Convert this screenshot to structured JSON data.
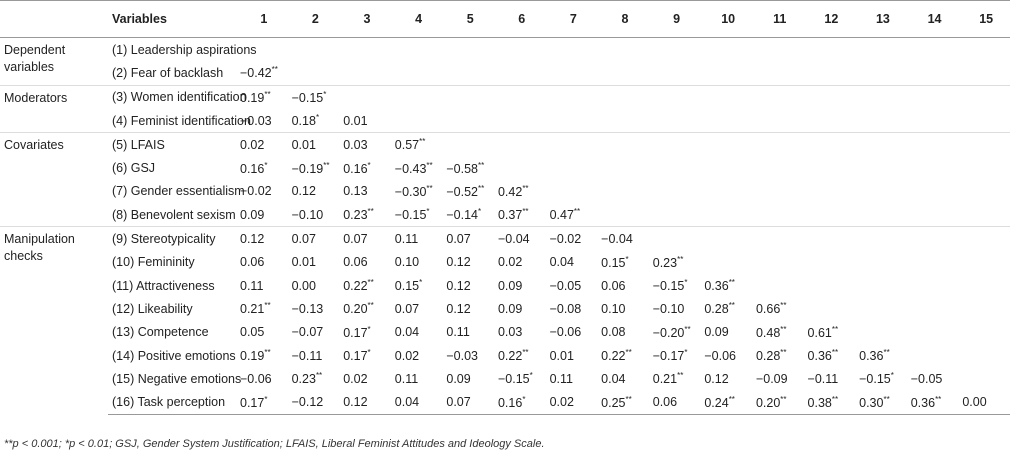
{
  "table": {
    "header": [
      "Variables",
      "1",
      "2",
      "3",
      "4",
      "5",
      "6",
      "7",
      "8",
      "9",
      "10",
      "11",
      "12",
      "13",
      "14",
      "15"
    ],
    "groups": [
      {
        "label": "Dependent variables",
        "rows": [
          {
            "label": "(1) Leadership aspirations",
            "cells": []
          },
          {
            "label": "(2) Fear of backlash",
            "cells": [
              {
                "value": "−0.42",
                "sup": "**"
              }
            ]
          }
        ]
      },
      {
        "label": "Moderators",
        "rows": [
          {
            "label": "(3) Women identification",
            "cells": [
              {
                "value": "0.19",
                "sup": "**"
              },
              {
                "value": "−0.15",
                "sup": "*"
              }
            ]
          },
          {
            "label": "(4) Feminist identification",
            "cells": [
              {
                "value": "−0.03"
              },
              {
                "value": "0.18",
                "sup": "*"
              },
              {
                "value": "0.01"
              }
            ]
          }
        ]
      },
      {
        "label": "Covariates",
        "rows": [
          {
            "label": "(5) LFAIS",
            "cells": [
              {
                "value": "0.02"
              },
              {
                "value": "0.01"
              },
              {
                "value": "0.03"
              },
              {
                "value": "0.57",
                "sup": "**"
              }
            ]
          },
          {
            "label": "(6) GSJ",
            "cells": [
              {
                "value": "0.16",
                "sup": "*"
              },
              {
                "value": "−0.19",
                "sup": "**"
              },
              {
                "value": "0.16",
                "sup": "*"
              },
              {
                "value": "−0.43",
                "sup": "**"
              },
              {
                "value": "−0.58",
                "sup": "**"
              }
            ]
          },
          {
            "label": "(7) Gender essentialism",
            "cells": [
              {
                "value": "−0.02"
              },
              {
                "value": "0.12"
              },
              {
                "value": "0.13"
              },
              {
                "value": "−0.30",
                "sup": "**"
              },
              {
                "value": "−0.52",
                "sup": "**"
              },
              {
                "value": "0.42",
                "sup": "**"
              }
            ]
          },
          {
            "label": "(8) Benevolent sexism",
            "cells": [
              {
                "value": "0.09"
              },
              {
                "value": "−0.10"
              },
              {
                "value": "0.23",
                "sup": "**"
              },
              {
                "value": "−0.15",
                "sup": "*"
              },
              {
                "value": "−0.14",
                "sup": "*"
              },
              {
                "value": "0.37",
                "sup": "**"
              },
              {
                "value": "0.47",
                "sup": "**"
              }
            ]
          }
        ]
      },
      {
        "label": "Manipulation checks",
        "rows": [
          {
            "label": "(9) Stereotypicality",
            "cells": [
              {
                "value": "0.12"
              },
              {
                "value": "0.07"
              },
              {
                "value": "0.07"
              },
              {
                "value": "0.11"
              },
              {
                "value": "0.07"
              },
              {
                "value": "−0.04"
              },
              {
                "value": "−0.02"
              },
              {
                "value": "−0.04"
              }
            ]
          },
          {
            "label": "(10) Femininity",
            "cells": [
              {
                "value": "0.06"
              },
              {
                "value": "0.01"
              },
              {
                "value": "0.06"
              },
              {
                "value": "0.10"
              },
              {
                "value": "0.12"
              },
              {
                "value": "0.02"
              },
              {
                "value": "0.04"
              },
              {
                "value": "0.15",
                "sup": "*"
              },
              {
                "value": "0.23",
                "sup": "**"
              }
            ]
          },
          {
            "label": "(11) Attractiveness",
            "cells": [
              {
                "value": "0.11"
              },
              {
                "value": "0.00"
              },
              {
                "value": "0.22",
                "sup": "**"
              },
              {
                "value": "0.15",
                "sup": "*"
              },
              {
                "value": "0.12"
              },
              {
                "value": "0.09"
              },
              {
                "value": "−0.05"
              },
              {
                "value": "0.06"
              },
              {
                "value": "−0.15",
                "sup": "*"
              },
              {
                "value": "0.36",
                "sup": "**"
              }
            ]
          },
          {
            "label": "(12) Likeability",
            "cells": [
              {
                "value": "0.21",
                "sup": "**"
              },
              {
                "value": "−0.13"
              },
              {
                "value": "0.20",
                "sup": "**"
              },
              {
                "value": "0.07"
              },
              {
                "value": "0.12"
              },
              {
                "value": "0.09"
              },
              {
                "value": "−0.08"
              },
              {
                "value": "0.10"
              },
              {
                "value": "−0.10"
              },
              {
                "value": "0.28",
                "sup": "**"
              },
              {
                "value": "0.66",
                "sup": "**"
              }
            ]
          },
          {
            "label": "(13) Competence",
            "cells": [
              {
                "value": "0.05"
              },
              {
                "value": "−0.07"
              },
              {
                "value": "0.17",
                "sup": "*"
              },
              {
                "value": "0.04"
              },
              {
                "value": "0.11"
              },
              {
                "value": "0.03"
              },
              {
                "value": "−0.06"
              },
              {
                "value": "0.08"
              },
              {
                "value": "−0.20",
                "sup": "**"
              },
              {
                "value": "0.09"
              },
              {
                "value": "0.48",
                "sup": "**"
              },
              {
                "value": "0.61",
                "sup": "**"
              }
            ]
          },
          {
            "label": "(14) Positive emotions",
            "cells": [
              {
                "value": "0.19",
                "sup": "**"
              },
              {
                "value": "−0.11"
              },
              {
                "value": "0.17",
                "sup": "*"
              },
              {
                "value": "0.02"
              },
              {
                "value": "−0.03"
              },
              {
                "value": "0.22",
                "sup": "**"
              },
              {
                "value": "0.01"
              },
              {
                "value": "0.22",
                "sup": "**"
              },
              {
                "value": "−0.17",
                "sup": "*"
              },
              {
                "value": "−0.06"
              },
              {
                "value": "0.28",
                "sup": "**"
              },
              {
                "value": "0.36",
                "sup": "**"
              },
              {
                "value": "0.36",
                "sup": "**"
              }
            ]
          },
          {
            "label": "(15) Negative emotions",
            "cells": [
              {
                "value": "−0.06"
              },
              {
                "value": "0.23",
                "sup": "**"
              },
              {
                "value": "0.02"
              },
              {
                "value": "0.11"
              },
              {
                "value": "0.09"
              },
              {
                "value": "−0.15",
                "sup": "*"
              },
              {
                "value": "0.11"
              },
              {
                "value": "0.04"
              },
              {
                "value": "0.21",
                "sup": "**"
              },
              {
                "value": "0.12"
              },
              {
                "value": "−0.09"
              },
              {
                "value": "−0.11"
              },
              {
                "value": "−0.15",
                "sup": "*"
              },
              {
                "value": "−0.05"
              }
            ]
          },
          {
            "label": "(16) Task perception",
            "cells": [
              {
                "value": "0.17",
                "sup": "*"
              },
              {
                "value": "−0.12"
              },
              {
                "value": "0.12"
              },
              {
                "value": "0.04"
              },
              {
                "value": "0.07"
              },
              {
                "value": "0.16",
                "sup": "*"
              },
              {
                "value": "0.02"
              },
              {
                "value": "0.25",
                "sup": "**"
              },
              {
                "value": "0.06"
              },
              {
                "value": "0.24",
                "sup": "**"
              },
              {
                "value": "0.20",
                "sup": "**"
              },
              {
                "value": "0.38",
                "sup": "**"
              },
              {
                "value": "0.30",
                "sup": "**"
              },
              {
                "value": "0.36",
                "sup": "**"
              },
              {
                "value": "0.00"
              }
            ]
          }
        ]
      }
    ],
    "footnote": "**p < 0.001; *p < 0.01; GSJ, Gender System Justification; LFAIS, Liberal Feminist Attitudes and Ideology Scale."
  }
}
